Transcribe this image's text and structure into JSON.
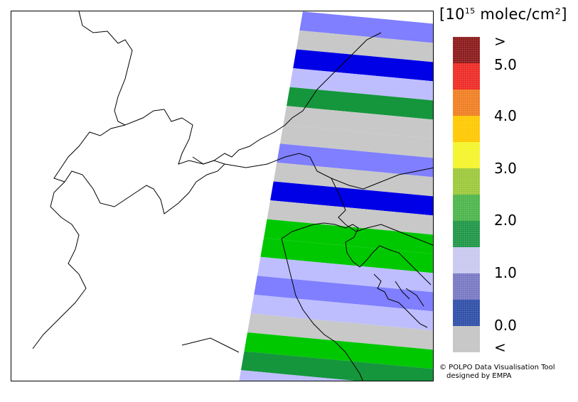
{
  "units": {
    "prefix": "[10",
    "exponent": "15",
    "suffix": " molec/cm²]"
  },
  "colorbar": {
    "segments": [
      {
        "color": "#8B1A1A",
        "pattern": true
      },
      {
        "color": "#EE2A24",
        "pattern": true
      },
      {
        "color": "#F07E22",
        "pattern": true
      },
      {
        "color": "#FFC800",
        "pattern": true
      },
      {
        "color": "#F4F42A",
        "pattern": true
      },
      {
        "color": "#9CC83A",
        "pattern": true
      },
      {
        "color": "#4CB44A",
        "pattern": true
      },
      {
        "color": "#1E9646",
        "pattern": true
      },
      {
        "color": "#C8C8F0",
        "pattern": true
      },
      {
        "color": "#7878C4",
        "pattern": true
      },
      {
        "color": "#2E4EA8",
        "pattern": true
      },
      {
        "color": "#C8C8C8",
        "pattern": false
      }
    ],
    "labels": [
      ">",
      "5.0",
      "4.0",
      "3.0",
      "2.0",
      "1.0",
      "0.0",
      "<"
    ]
  },
  "credit": {
    "line1": "© POLPO Data Visualisation Tool",
    "line2": "designed by EMPA"
  },
  "swath_bands": [
    {
      "color": "#7F7FFF"
    },
    {
      "color": "#C8C8C8"
    },
    {
      "color": "#0000E6"
    },
    {
      "color": "#BEBEFF"
    },
    {
      "color": "#15963C"
    },
    {
      "color": "#C8C8C8"
    },
    {
      "color": "#C8C8C8"
    },
    {
      "color": "#7F7FFF"
    },
    {
      "color": "#C8C8C8"
    },
    {
      "color": "#0000E6"
    },
    {
      "color": "#C8C8C8"
    },
    {
      "color": "#00C800"
    },
    {
      "color": "#00C800"
    },
    {
      "color": "#BEBEFF"
    },
    {
      "color": "#7F7FFF"
    },
    {
      "color": "#BEBEFF"
    },
    {
      "color": "#C8C8C8"
    },
    {
      "color": "#00C800"
    },
    {
      "color": "#15963C"
    },
    {
      "color": "#BEBEFF"
    }
  ]
}
